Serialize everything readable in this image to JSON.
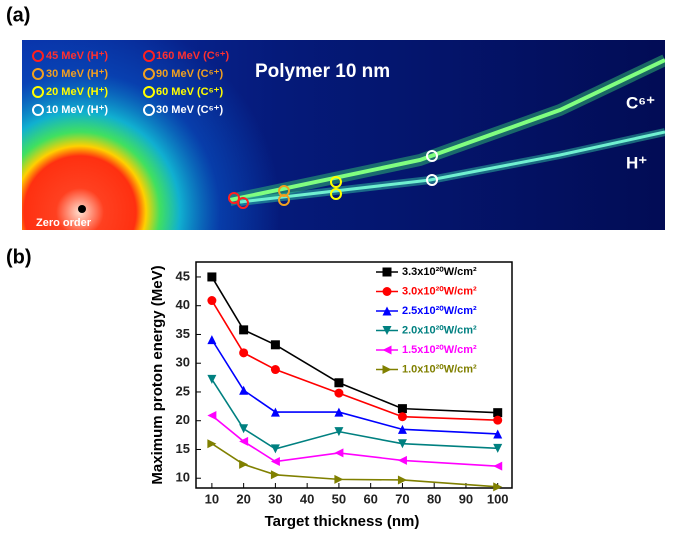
{
  "panel_labels": [
    "(a)",
    "(b)"
  ],
  "image": {
    "title": "Polymer 10 nm",
    "legend": [
      [
        "45 MeV (H⁺)",
        "160 MeV (C⁶⁺)"
      ],
      [
        "30 MeV (H⁺)",
        "90 MeV (C⁶⁺)"
      ],
      [
        "20 MeV (H⁺)",
        "60 MeV (C⁶⁺)"
      ],
      [
        "10 MeV (H⁺)",
        "30 MeV (C⁶⁺)"
      ]
    ],
    "trace_labels": [
      "C⁶⁺",
      "H⁺"
    ],
    "zero_order": "Zero order"
  },
  "chart_data": {
    "type": "line",
    "xlabel": "Target thickness (nm)",
    "ylabel": "Maximum proton energy (MeV)",
    "x": [
      10,
      20,
      30,
      50,
      70,
      100
    ],
    "series": [
      {
        "name": "3.3x10²⁰W/cm²",
        "color": "#000000",
        "marker": "square",
        "values": [
          45.0,
          35.8,
          33.2,
          26.6,
          22.1,
          21.4
        ]
      },
      {
        "name": "3.0x10²⁰W/cm²",
        "color": "#ff0000",
        "marker": "circle",
        "values": [
          40.9,
          31.8,
          28.9,
          24.8,
          20.7,
          20.1
        ]
      },
      {
        "name": "2.5x10²⁰W/cm²",
        "color": "#0000ff",
        "marker": "triangle-up",
        "values": [
          34.1,
          25.3,
          21.5,
          21.5,
          18.5,
          17.7
        ]
      },
      {
        "name": "2.0x10²⁰W/cm²",
        "color": "#008080",
        "marker": "triangle-down",
        "values": [
          27.2,
          18.6,
          15.1,
          18.1,
          16.0,
          15.2
        ]
      },
      {
        "name": "1.5x10²⁰W/cm²",
        "color": "#ff00ff",
        "marker": "triangle-left",
        "values": [
          20.9,
          16.4,
          12.9,
          14.4,
          13.1,
          12.1
        ]
      },
      {
        "name": "1.0x10²⁰W/cm²",
        "color": "#808000",
        "marker": "triangle-right",
        "values": [
          16.0,
          12.4,
          10.6,
          9.8,
          9.7,
          8.5
        ]
      }
    ],
    "xlim": [
      5,
      104.5
    ],
    "xticks": [
      10,
      20,
      30,
      40,
      50,
      60,
      70,
      80,
      90,
      100
    ],
    "ylim": [
      8.3,
      47.6
    ],
    "yticks": [
      10,
      15,
      20,
      25,
      30,
      35,
      40,
      45
    ],
    "legend": "upper right"
  }
}
